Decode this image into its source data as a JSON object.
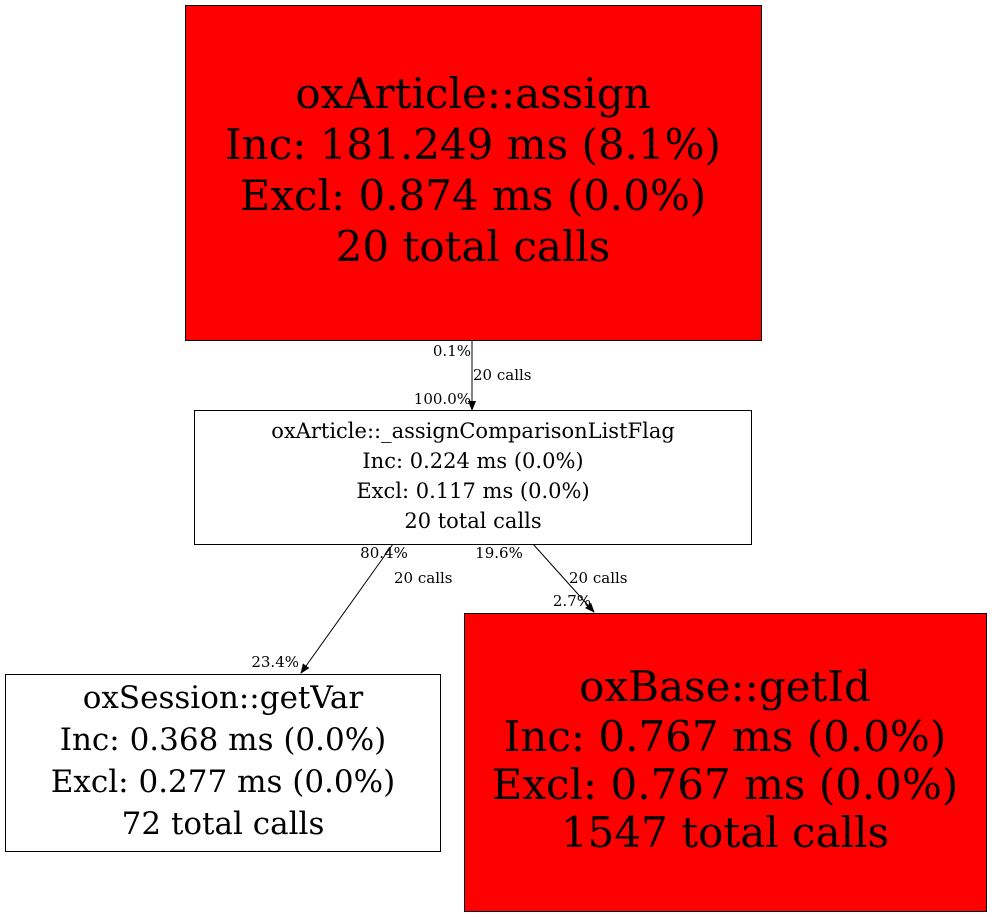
{
  "colors": {
    "hot": "#ff0000",
    "normal": "#ffffff",
    "stroke": "#000000"
  },
  "nodes": {
    "assign": {
      "lines": [
        "oxArticle::assign",
        "Inc: 181.249 ms (8.1%)",
        "Excl: 0.874 ms (0.0%)",
        "20 total calls"
      ],
      "fill": "#ff0000"
    },
    "flag": {
      "lines": [
        "oxArticle::_assignComparisonListFlag",
        "Inc: 0.224 ms (0.0%)",
        "Excl: 0.117 ms (0.0%)",
        "20 total calls"
      ],
      "fill": "#ffffff"
    },
    "getVar": {
      "lines": [
        "oxSession::getVar",
        "Inc: 0.368 ms (0.0%)",
        "Excl: 0.277 ms (0.0%)",
        "72 total calls"
      ],
      "fill": "#ffffff"
    },
    "getId": {
      "lines": [
        "oxBase::getId",
        "Inc: 0.767 ms (0.0%)",
        "Excl: 0.767 ms (0.0%)",
        "1547 total calls"
      ],
      "fill": "#ff0000"
    }
  },
  "edges": [
    {
      "from": "oxArticle::assign",
      "to": "oxArticle::_assignComparisonListFlag",
      "tail": "0.1%",
      "label": "20 calls",
      "head": "100.0%"
    },
    {
      "from": "oxArticle::_assignComparisonListFlag",
      "to": "oxSession::getVar",
      "tail": "80.4%",
      "label": "20 calls",
      "head": "23.4%"
    },
    {
      "from": "oxArticle::_assignComparisonListFlag",
      "to": "oxBase::getId",
      "tail": "19.6%",
      "label": "20 calls",
      "head": "2.7%"
    }
  ]
}
